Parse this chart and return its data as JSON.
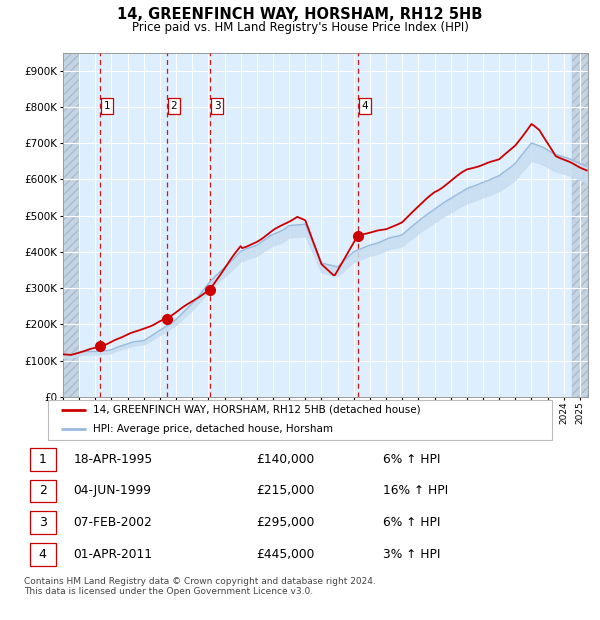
{
  "title": "14, GREENFINCH WAY, HORSHAM, RH12 5HB",
  "subtitle": "Price paid vs. HM Land Registry's House Price Index (HPI)",
  "legend_label_red": "14, GREENFINCH WAY, HORSHAM, RH12 5HB (detached house)",
  "legend_label_blue": "HPI: Average price, detached house, Horsham",
  "footer": "Contains HM Land Registry data © Crown copyright and database right 2024.\nThis data is licensed under the Open Government Licence v3.0.",
  "transactions": [
    {
      "num": 1,
      "date": "18-APR-1995",
      "price": 140000,
      "pct": "6%",
      "dir": "↑",
      "year": 1995.29
    },
    {
      "num": 2,
      "date": "04-JUN-1999",
      "price": 215000,
      "pct": "16%",
      "dir": "↑",
      "year": 1999.42
    },
    {
      "num": 3,
      "date": "07-FEB-2002",
      "price": 295000,
      "pct": "6%",
      "dir": "↑",
      "year": 2002.1
    },
    {
      "num": 4,
      "date": "01-APR-2011",
      "price": 445000,
      "pct": "3%",
      "dir": "↑",
      "year": 2011.25
    }
  ],
  "color_red": "#cc0000",
  "color_blue_fill": "#c8ddf0",
  "color_blue_line": "#99bbdd",
  "bg_plot": "#ddeeff",
  "grid_color": "#ffffff",
  "dashed_color": "#cc0000",
  "ylim": [
    0,
    950000
  ],
  "yticks": [
    0,
    100000,
    200000,
    300000,
    400000,
    500000,
    600000,
    700000,
    800000,
    900000
  ],
  "xlim_start": 1993.0,
  "xlim_end": 2025.5
}
